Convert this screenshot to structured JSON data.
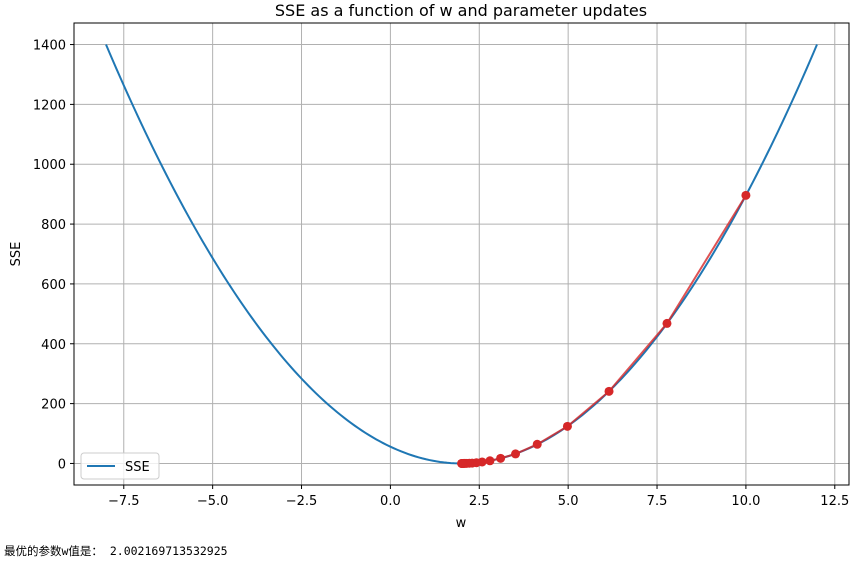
{
  "chart_data": {
    "type": "line",
    "title": "SSE as a function of w and parameter updates",
    "xlabel": "w",
    "ylabel": "SSE",
    "xlim": [
      -8.9,
      12.9
    ],
    "ylim": [
      -72,
      1472
    ],
    "grid": true,
    "legend_position": "bottom-left",
    "x_ticks": [
      -7.5,
      -5.0,
      -2.5,
      0.0,
      2.5,
      5.0,
      7.5,
      10.0,
      12.5
    ],
    "x_tick_labels": [
      "−7.5",
      "−5.0",
      "−2.5",
      "0.0",
      "2.5",
      "5.0",
      "7.5",
      "10.0",
      "12.5"
    ],
    "y_ticks": [
      0,
      200,
      400,
      600,
      800,
      1000,
      1200,
      1400
    ],
    "y_tick_labels": [
      "0",
      "200",
      "400",
      "600",
      "800",
      "1000",
      "1200",
      "1400"
    ],
    "series": [
      {
        "name": "SSE",
        "color": "#1f77b4",
        "curve": {
          "form": "a*(w-w0)^2",
          "a": 14.0,
          "w0": 2.0,
          "w_range": [
            -8,
            12
          ]
        }
      },
      {
        "color": "#d62728",
        "marker": "circle",
        "points": [
          {
            "x": 10.0,
            "y": 896
          },
          {
            "x": 7.78,
            "y": 468
          },
          {
            "x": 6.15,
            "y": 241
          },
          {
            "x": 4.98,
            "y": 124
          },
          {
            "x": 4.13,
            "y": 64
          },
          {
            "x": 3.52,
            "y": 32
          },
          {
            "x": 3.1,
            "y": 17
          },
          {
            "x": 2.8,
            "y": 9
          },
          {
            "x": 2.58,
            "y": 5
          },
          {
            "x": 2.42,
            "y": 2.5
          },
          {
            "x": 2.3,
            "y": 1.3
          },
          {
            "x": 2.22,
            "y": 0.7
          },
          {
            "x": 2.15,
            "y": 0.3
          },
          {
            "x": 2.1,
            "y": 0.14
          },
          {
            "x": 2.07,
            "y": 0.07
          },
          {
            "x": 2.05,
            "y": 0.03
          },
          {
            "x": 2.03,
            "y": 0.01
          },
          {
            "x": 2.02,
            "y": 0.006
          },
          {
            "x": 2.01,
            "y": 0.002
          },
          {
            "x": 2.002,
            "y": 0.0001
          }
        ]
      }
    ]
  },
  "output": {
    "label": "最优的参数w值是：",
    "value": " 2.002169713532925"
  }
}
